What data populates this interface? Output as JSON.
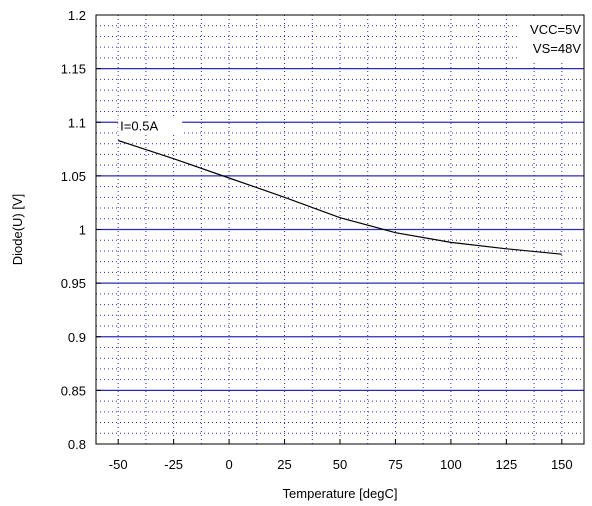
{
  "chart_data": {
    "type": "line",
    "title": "",
    "xlabel": "Temperature [degC]",
    "ylabel": "Diode(U)  [V]",
    "xlim": [
      -60,
      160
    ],
    "ylim": [
      0.8,
      1.2
    ],
    "x_ticks": [
      -50,
      -25,
      0,
      25,
      50,
      75,
      100,
      125,
      150
    ],
    "x_tick_labels": [
      "-50",
      "-25",
      "0",
      "25",
      "50",
      "75",
      "100",
      "125",
      "150"
    ],
    "y_ticks": [
      0.8,
      0.85,
      0.9,
      0.95,
      1.0,
      1.05,
      1.1,
      1.15,
      1.2
    ],
    "y_tick_labels": [
      "0.8",
      "0.85",
      "0.9",
      "0.95",
      "1",
      "1.05",
      "1.1",
      "1.15",
      "1.2"
    ],
    "grid": true,
    "series": [
      {
        "name": "I=0.5A",
        "x": [
          -50,
          -25,
          0,
          25,
          50,
          75,
          100,
          125,
          150
        ],
        "y": [
          1.083,
          1.066,
          1.048,
          1.03,
          1.011,
          0.997,
          0.988,
          0.982,
          0.977
        ]
      }
    ],
    "annotations": [
      "VCC=5V",
      "VS=48V"
    ],
    "colors": {
      "major_grid": "#2b2bb8",
      "minor_grid": "#2b2bb8",
      "line": "#000000"
    }
  }
}
